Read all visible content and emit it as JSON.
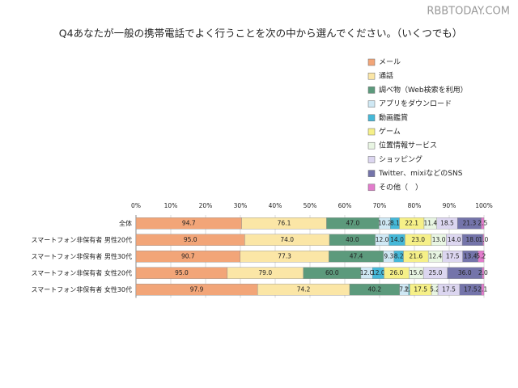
{
  "watermark": "RBBTODAY.COM",
  "chart_data": {
    "type": "stacked-bar-100",
    "title": "Q4あなたが一般の携帯電話でよく行うことを次の中から選んでください。（いくつでも）",
    "categories": [
      "全体",
      "スマートフォン非保有者 男性20代",
      "スマートフォン非保有者 男性30代",
      "スマートフォン非保有者 女性20代",
      "スマートフォン非保有者 女性30代"
    ],
    "xlim": [
      0,
      100
    ],
    "xticks": [
      {
        "value": 0,
        "label": "0%"
      },
      {
        "value": 10,
        "label": "10%"
      },
      {
        "value": 20,
        "label": "20%"
      },
      {
        "value": 30,
        "label": "30%"
      },
      {
        "value": 40,
        "label": "40%"
      },
      {
        "value": 50,
        "label": "50%"
      },
      {
        "value": 60,
        "label": "60%"
      },
      {
        "value": 70,
        "label": "70%"
      },
      {
        "value": 80,
        "label": "80%"
      },
      {
        "value": 90,
        "label": "90%"
      },
      {
        "value": 100,
        "label": "100%"
      }
    ],
    "grid": true,
    "legend": "right",
    "series": [
      {
        "name": "メール",
        "color": "#f2a578",
        "values": [
          94.7,
          95,
          90.7,
          95,
          97.9
        ],
        "value_labels": [
          "94.7",
          "95.0",
          "90.7",
          "95.0",
          "97.9"
        ]
      },
      {
        "name": "通話",
        "color": "#fbe6a6",
        "values": [
          76.1,
          74,
          77.3,
          79,
          74.2
        ],
        "value_labels": [
          "76.1",
          "74.0",
          "77.3",
          "79.0",
          "74.2"
        ]
      },
      {
        "name": "調べ物（Web検索を利用）",
        "color": "#5c9a7c",
        "values": [
          47,
          40,
          47.4,
          60,
          40.2
        ],
        "value_labels": [
          "47.0",
          "40.0",
          "47.4",
          "60.0",
          "40.2"
        ]
      },
      {
        "name": "アプリをダウンロード",
        "color": "#cfe8f4",
        "values": [
          10.2,
          12,
          9.3,
          12,
          7.2
        ],
        "value_labels": [
          "10.2",
          "12.0",
          "9.3",
          "12.0",
          "7.2"
        ]
      },
      {
        "name": "動画鑑賞",
        "color": "#45b8d8",
        "values": [
          8.1,
          14,
          8.2,
          12,
          1
        ],
        "value_labels": [
          "8.1",
          "14.0",
          "8.2",
          "12.0",
          "1.0"
        ]
      },
      {
        "name": "ゲーム",
        "color": "#f6f088",
        "values": [
          22.1,
          23,
          21.6,
          26,
          17.5
        ],
        "value_labels": [
          "22.1",
          "23.0",
          "21.6",
          "26.0",
          "17.5"
        ]
      },
      {
        "name": "位置情報サービス",
        "color": "#e8f5e2",
        "values": [
          11.4,
          13,
          12.4,
          15,
          5.2
        ],
        "value_labels": [
          "11.4",
          "13.0",
          "12.4",
          "15.0",
          "5.2"
        ]
      },
      {
        "name": "ショッピング",
        "color": "#dcd6f0",
        "values": [
          18.5,
          14,
          17.5,
          25,
          17.5
        ],
        "value_labels": [
          "18.5",
          "14.0",
          "17.5",
          "25.0",
          "17.5"
        ]
      },
      {
        "name": "Twitter、mixiなどのSNS",
        "color": "#7474aa",
        "values": [
          21.3,
          18,
          13.4,
          36,
          17.5
        ],
        "value_labels": [
          "21.3",
          "18.0",
          "13.4",
          "36.0",
          "17.5"
        ]
      },
      {
        "name": "その他（　）",
        "color": "#e27ccc",
        "values": [
          2.5,
          1,
          5.2,
          2,
          2.1
        ],
        "value_labels": [
          "2.5",
          "1.0",
          "5.2",
          "2.0",
          "2.1"
        ]
      }
    ]
  }
}
